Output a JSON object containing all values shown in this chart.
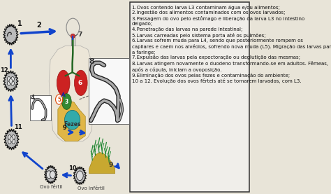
{
  "bg_color": "#e8e4d8",
  "right_panel_bg": "#f0eeea",
  "right_panel_border": "#333333",
  "arrow_color": "#1144cc",
  "right_text": "1.Ovos contendo larva L3 contaminam água e/ou alimentos;\n2.Ingestão dos alimentos contaminados com os ovos larvados;\n3.Passagem do ovo pelo estômago e liberação da larva L3 no intestino\ndelgado;\n4.Penetração das larvas na parede intestinal;\n5.Larvas carreadas pelo sistema porta até os pulmões;\n6.Larvas sofrem muda para L4, sendo que posteriormente rompem os\ncapilares e caem nos alvéolos, sofrendo nova muda (L5). Migração das larvas para\na faringe;\n7.Expulsão das larvas pela expectoração ou deglutição das mesmas;\n8.Larvas atingem novamente o duodeno transformando-se em adultos. Fêmeas,\napós a cópula, iniciam a ovoposição.\n9.Eliminação dos ovos pelas fezes e contaminação do ambiente;\n10 a 12. Evolução dos ovos férteis até se tornarem larvados, com L3.",
  "text_fontsize": 5.0,
  "fezes_label": "Fezes",
  "ovo_fertil_label": "Ovo fértil",
  "ovo_infertil_label": "Ovo infértil",
  "skin_color": "#e0c8a0",
  "lung_color": "#cc2222",
  "stomach_color": "#228833",
  "intestine_color": "#ddaa22",
  "plant_color": "#228833",
  "soil_color": "#c8a830",
  "worm_dark": "#222222",
  "worm_light": "#aaaaaa",
  "egg_dark": "#333333",
  "egg_mid": "#888888",
  "egg_fill": "#cccccc"
}
